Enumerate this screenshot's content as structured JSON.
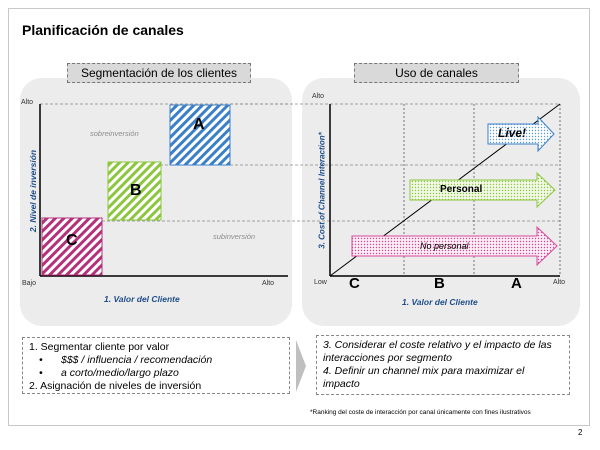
{
  "page_title": "Planificación de canales",
  "page_number": "2",
  "left": {
    "header": "Segmentación de los clientes",
    "y_axis_label": "2. Nivel de inversión",
    "x_axis_label": "1. Valor del Cliente",
    "y_top": "Alto",
    "y_bottom": "Bajo",
    "x_right": "Alto",
    "over_label": "sobreinversión",
    "under_label": "subinversión",
    "segments": [
      "A",
      "B",
      "C"
    ]
  },
  "right": {
    "header": "Uso de canales",
    "y_axis_label": "3. Cost of Channel Interaction*",
    "x_axis_label": "1. Valor del Cliente",
    "y_top": "Alto",
    "x_left": "Low",
    "x_right": "Alto",
    "x_segments": [
      "C",
      "B",
      "A"
    ],
    "arrows": {
      "live": "Live!",
      "personal": "Personal",
      "no_personal": "No personal"
    }
  },
  "steps_left": {
    "item1": "1. Segmentar cliente por valor",
    "sub1": "$$$ / influencia / recomendación",
    "sub2": "a corto/medio/largo plazo",
    "item2": "2. Asignación de niveles de inversión"
  },
  "steps_right": {
    "item3": "3. Considerar el coste relativo y el impacto de las interacciones por segmento",
    "item4": "4. Definir un channel mix para maximizar el impacto"
  },
  "footnote": "*Ranking  del coste de interacción por canal únicamente con fines ilustrativos",
  "colors": {
    "blue_hatch": "#3a7fc8",
    "green_hatch": "#8cc63f",
    "magenta_hatch": "#b5307a",
    "axis_label_blue": "#1f4e8c"
  }
}
